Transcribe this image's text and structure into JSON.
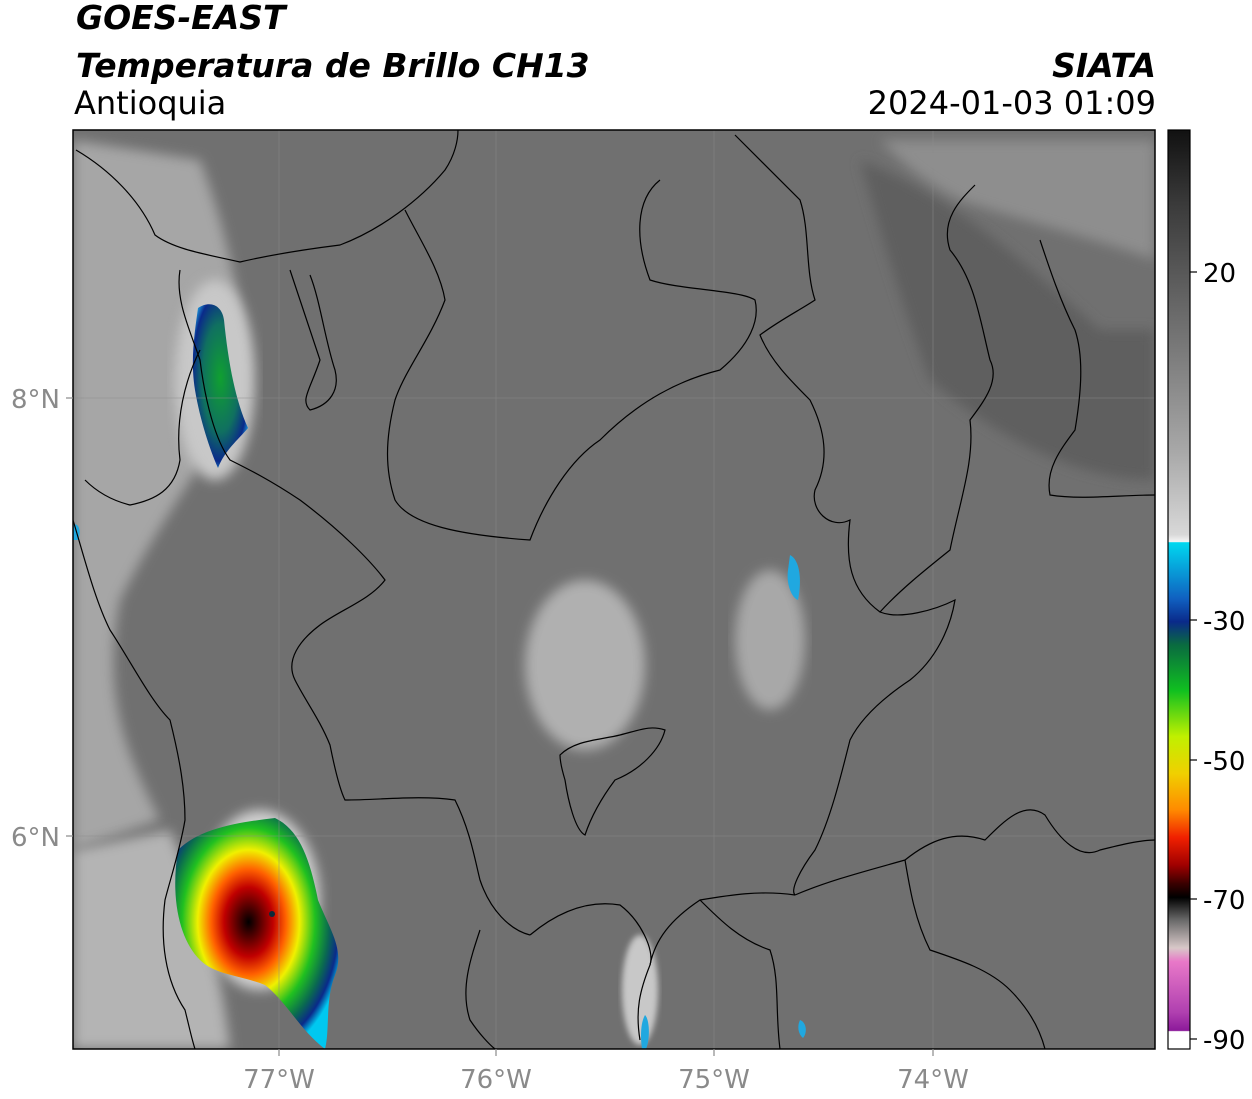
{
  "header": {
    "satellite": "GOES-EAST",
    "product": "Temperatura de Brillo CH13",
    "region": "Antioquia",
    "organization": "SIATA",
    "datetime": "2024-01-03 01:09"
  },
  "axes": {
    "lat_labels": [
      "8°N",
      "6°N"
    ],
    "lon_labels": [
      "77°W",
      "76°W",
      "75°W",
      "74°W"
    ]
  },
  "colorbar": {
    "tick_labels": [
      "20",
      "-30",
      "-50",
      "-70",
      "-90"
    ],
    "colors": {
      "warm_top": "#111111",
      "gray_mid": "#8c8c8c",
      "white": "#f4f4f4",
      "cyan": "#00d8f0",
      "dark_blue": "#0a2a8a",
      "green": "#10a030",
      "yellow": "#f0f000",
      "orange": "#ff8a00",
      "red": "#e00000",
      "dark_red": "#5a0000",
      "black": "#000000",
      "pink": "#e878c8",
      "purple": "#8c1a9a"
    }
  },
  "map": {
    "background_gray": "#6e6e6e",
    "boundary_color": "#000000"
  }
}
